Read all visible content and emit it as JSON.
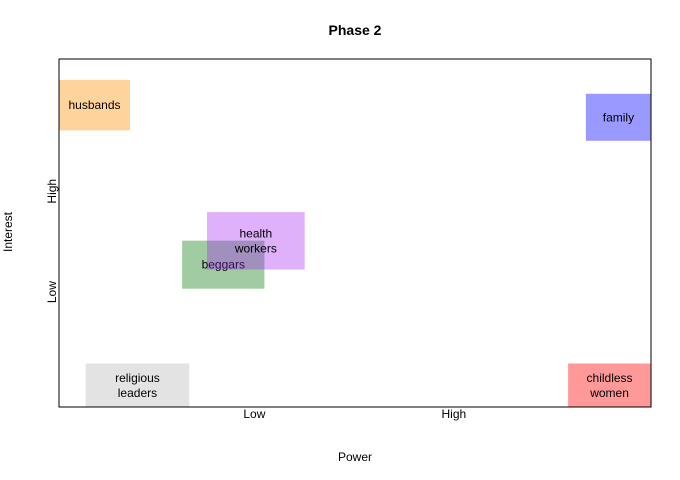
{
  "chart_data": {
    "type": "scatter",
    "title": "Phase 2",
    "xlabel": "Power",
    "ylabel": "Interest",
    "xlim": [
      0,
      1
    ],
    "ylim": [
      0,
      1
    ],
    "x_ticks": [
      {
        "value": 0.33,
        "label": "Low"
      },
      {
        "value": 0.667,
        "label": "High"
      }
    ],
    "y_ticks": [
      {
        "value": 0.33,
        "label": "Low"
      },
      {
        "value": 0.62,
        "label": "High"
      }
    ],
    "grid": false,
    "legend": "none",
    "stakeholders": [
      {
        "name": "husbands",
        "lines": [
          "husbands"
        ],
        "x": [
          0.0,
          0.12
        ],
        "y": [
          0.795,
          0.94
        ],
        "color": "#FFA024",
        "alpha": 0.45
      },
      {
        "name": "family",
        "lines": [
          "family"
        ],
        "x": [
          0.89,
          1.0
        ],
        "y": [
          0.765,
          0.9
        ],
        "color": "#0000FF",
        "alpha": 0.4
      },
      {
        "name": "beggars",
        "lines": [
          "beggars"
        ],
        "x": [
          0.208,
          0.347
        ],
        "y": [
          0.34,
          0.478
        ],
        "color": "#2E8B2E",
        "alpha": 0.45
      },
      {
        "name": "health workers",
        "lines": [
          "health",
          "workers"
        ],
        "x": [
          0.25,
          0.415
        ],
        "y": [
          0.395,
          0.56
        ],
        "color": "#A020F0",
        "alpha": 0.35
      },
      {
        "name": "religious leaders",
        "lines": [
          "religious",
          "leaders"
        ],
        "x": [
          0.045,
          0.22
        ],
        "y": [
          0.0,
          0.125
        ],
        "color": "#C8C8C8",
        "alpha": 0.5
      },
      {
        "name": "childless women",
        "lines": [
          "childless",
          "women"
        ],
        "x": [
          0.86,
          1.0
        ],
        "y": [
          0.0,
          0.125
        ],
        "color": "#FF0000",
        "alpha": 0.4
      }
    ]
  }
}
